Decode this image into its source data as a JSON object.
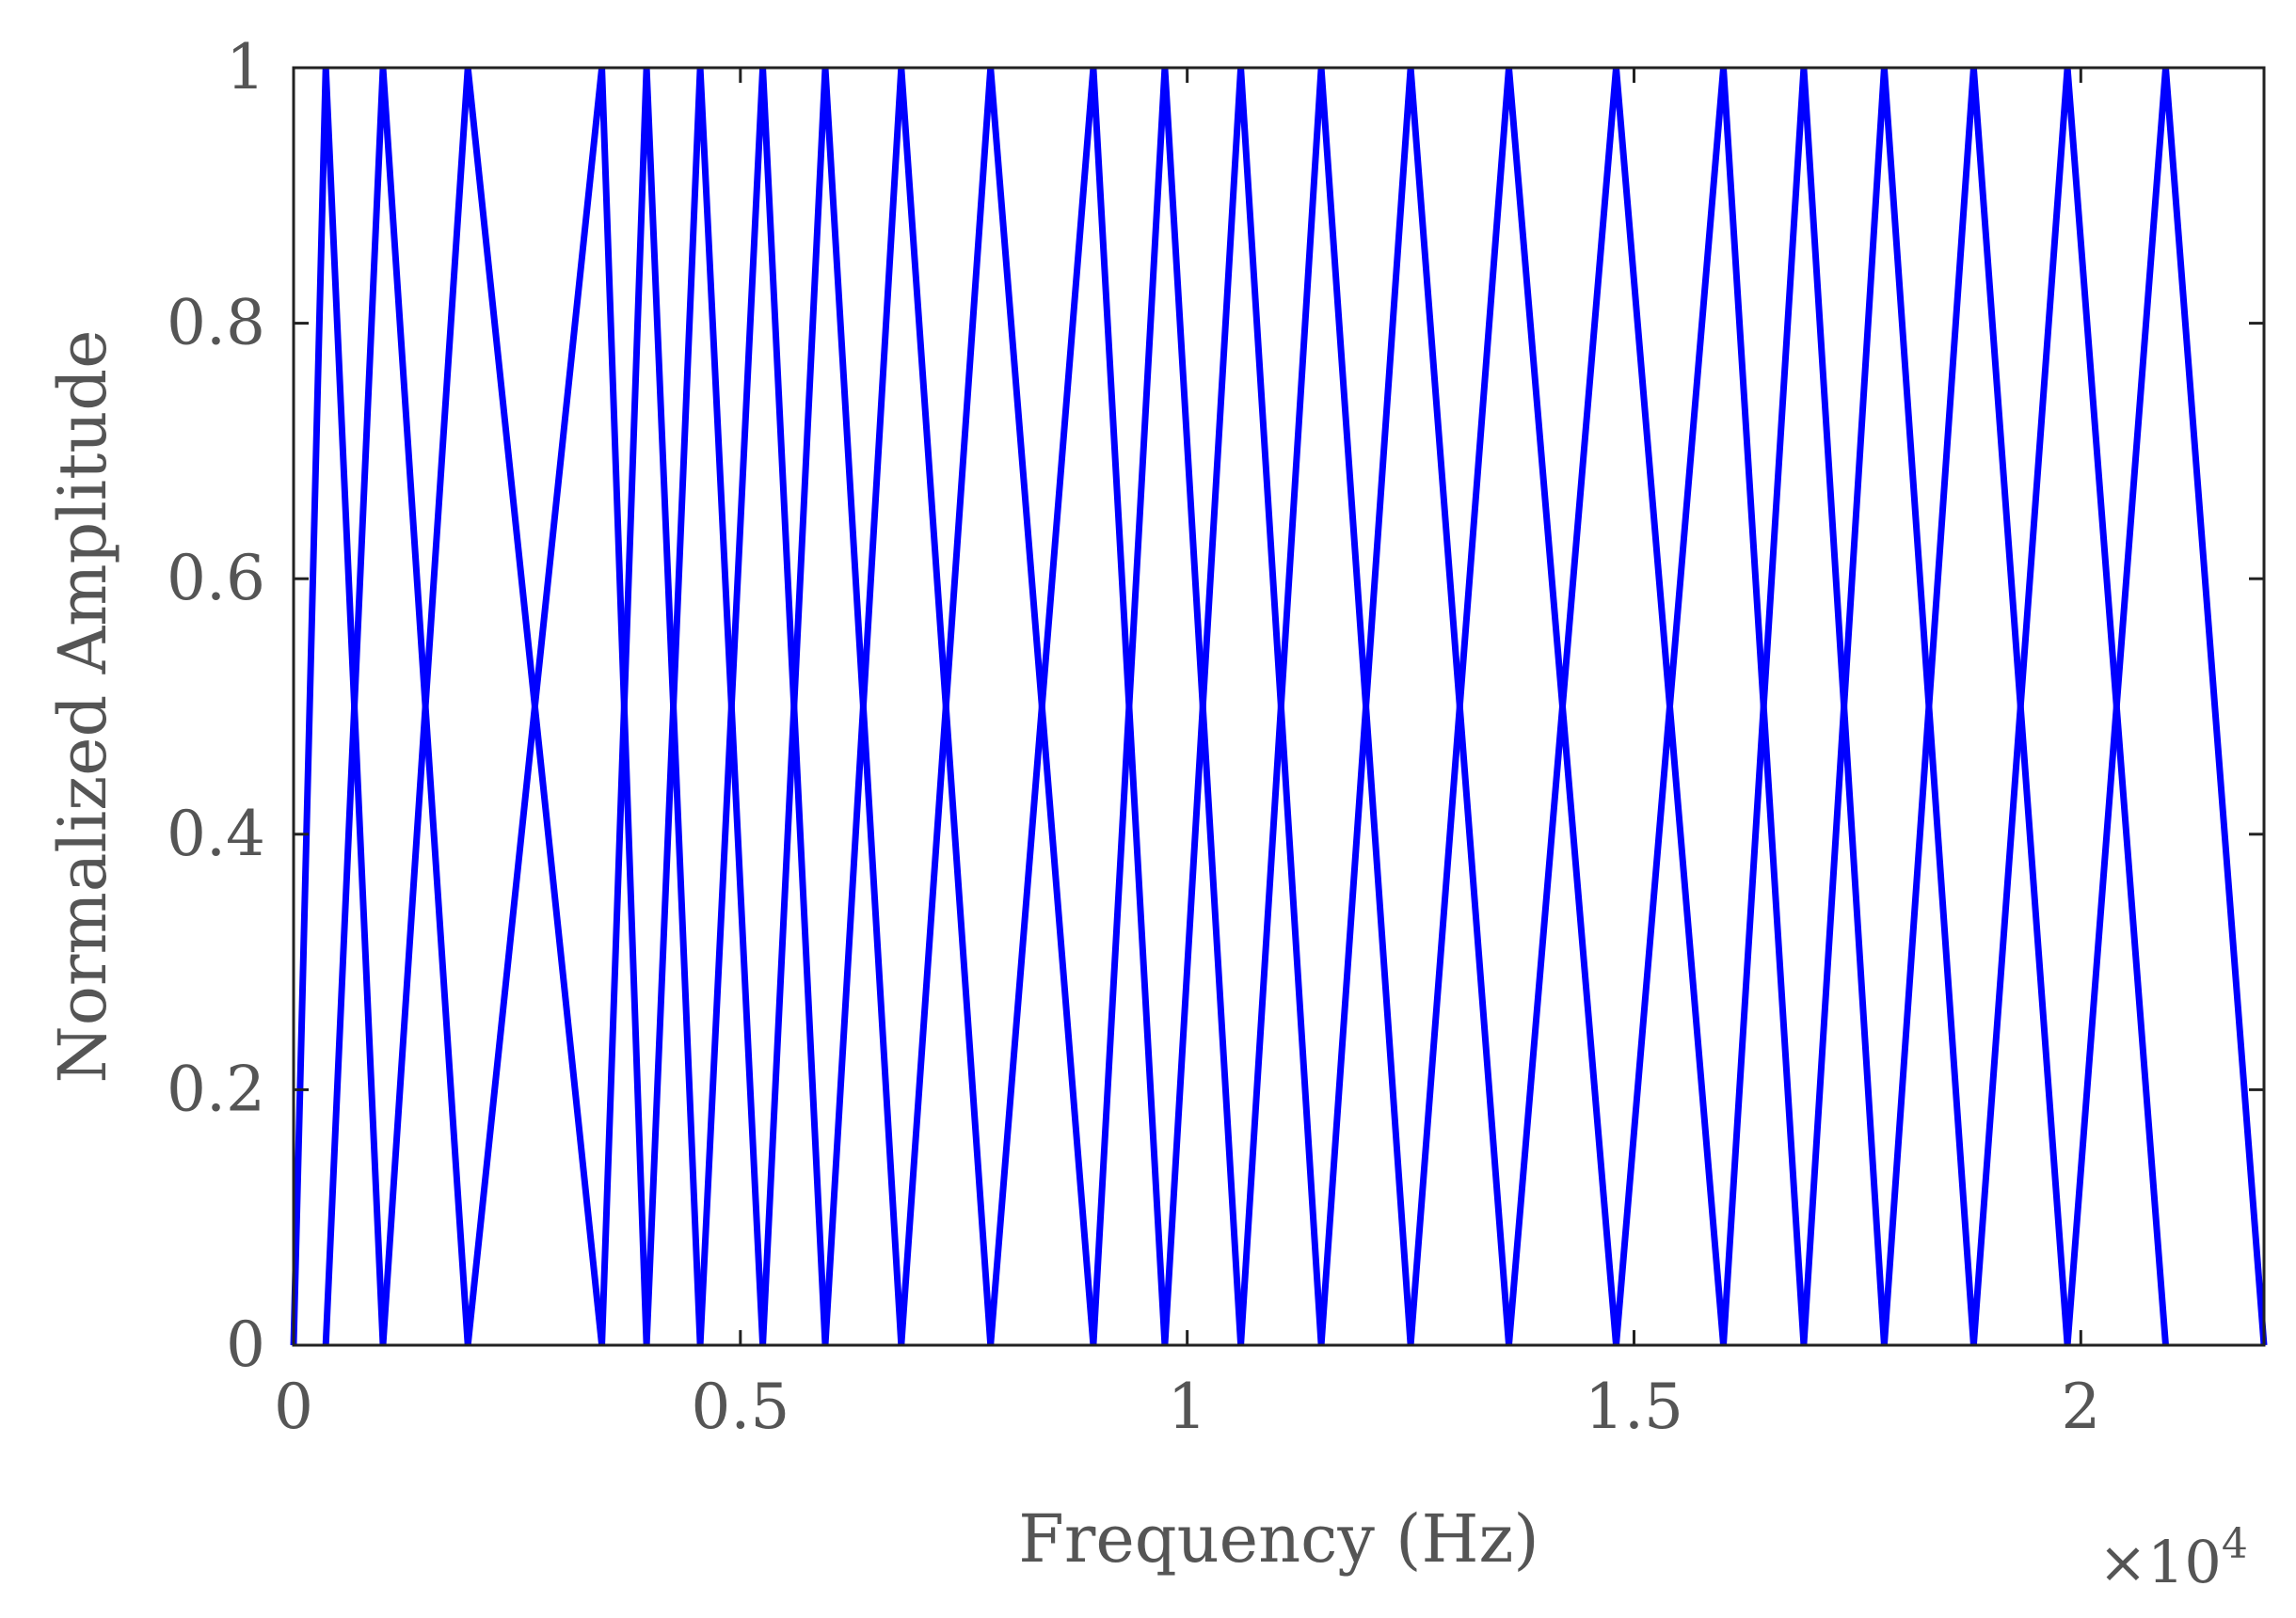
{
  "chart_data": {
    "type": "line",
    "title": "",
    "xlabel": "Frequency (Hz)",
    "ylabel": "Normalized Amplitude",
    "x_multiplier_label": "×10",
    "x_multiplier_exponent": "4",
    "xlim": [
      0,
      22050
    ],
    "ylim": [
      0,
      1
    ],
    "xticks": [
      0,
      5000,
      10000,
      15000,
      20000
    ],
    "xtick_labels": [
      "0",
      "0.5",
      "1",
      "1.5",
      "2"
    ],
    "yticks": [
      0,
      0.2,
      0.4,
      0.6,
      0.8,
      1
    ],
    "ytick_labels": [
      "0",
      "0.2",
      "0.4",
      "0.6",
      "0.8",
      "1"
    ],
    "grid": false,
    "line_color": "#0000ff",
    "series": [
      {
        "x": [
          0,
          360,
          1000
        ],
        "y": [
          0,
          1,
          0
        ]
      },
      {
        "x": [
          360,
          1000,
          1950
        ],
        "y": [
          0,
          1,
          0
        ]
      },
      {
        "x": [
          1000,
          1950,
          3450
        ],
        "y": [
          0,
          1,
          0
        ]
      },
      {
        "x": [
          1950,
          3450,
          3950
        ],
        "y": [
          0,
          1,
          0
        ]
      },
      {
        "x": [
          3450,
          3950,
          4550
        ],
        "y": [
          0,
          1,
          0
        ]
      },
      {
        "x": [
          3950,
          4550,
          5250
        ],
        "y": [
          0,
          1,
          0
        ]
      },
      {
        "x": [
          4550,
          5250,
          5950
        ],
        "y": [
          0,
          1,
          0
        ]
      },
      {
        "x": [
          5250,
          5950,
          6800
        ],
        "y": [
          0,
          1,
          0
        ]
      },
      {
        "x": [
          5950,
          6800,
          7800
        ],
        "y": [
          0,
          1,
          0
        ]
      },
      {
        "x": [
          6800,
          7800,
          8950
        ],
        "y": [
          0,
          1,
          0
        ]
      },
      {
        "x": [
          7800,
          8950,
          9750
        ],
        "y": [
          0,
          1,
          0
        ]
      },
      {
        "x": [
          8950,
          9750,
          10600
        ],
        "y": [
          0,
          1,
          0
        ]
      },
      {
        "x": [
          9750,
          10600,
          11500
        ],
        "y": [
          0,
          1,
          0
        ]
      },
      {
        "x": [
          10600,
          11500,
          12500
        ],
        "y": [
          0,
          1,
          0
        ]
      },
      {
        "x": [
          11500,
          12500,
          13600
        ],
        "y": [
          0,
          1,
          0
        ]
      },
      {
        "x": [
          12500,
          13600,
          14800
        ],
        "y": [
          0,
          1,
          0
        ]
      },
      {
        "x": [
          13600,
          14800,
          16000
        ],
        "y": [
          0,
          1,
          0
        ]
      },
      {
        "x": [
          14800,
          16000,
          16900
        ],
        "y": [
          0,
          1,
          0
        ]
      },
      {
        "x": [
          16000,
          16900,
          17800
        ],
        "y": [
          0,
          1,
          0
        ]
      },
      {
        "x": [
          16900,
          17800,
          18800
        ],
        "y": [
          0,
          1,
          0
        ]
      },
      {
        "x": [
          17800,
          18800,
          19850
        ],
        "y": [
          0,
          1,
          0
        ]
      },
      {
        "x": [
          18800,
          19850,
          20950
        ],
        "y": [
          0,
          1,
          0
        ]
      },
      {
        "x": [
          19850,
          20950,
          22050
        ],
        "y": [
          0,
          1,
          0
        ]
      }
    ]
  }
}
